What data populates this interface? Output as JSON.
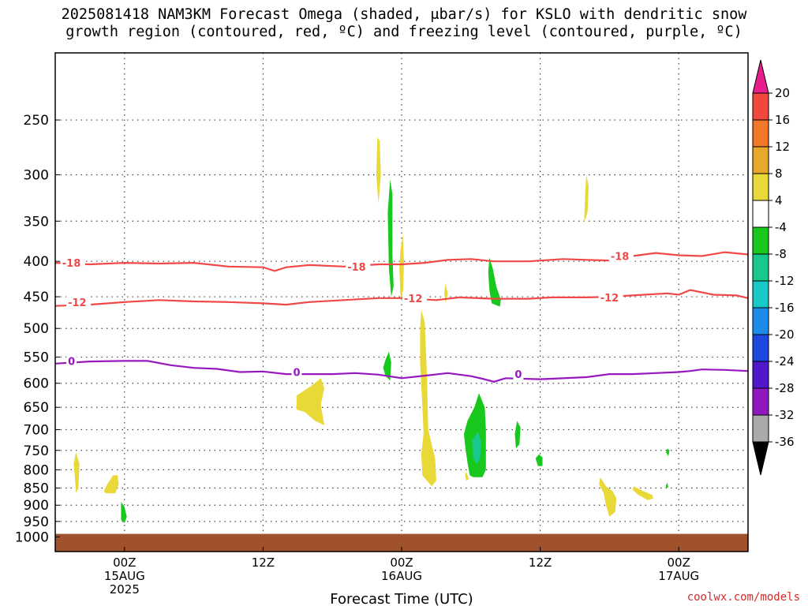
{
  "title": {
    "line1": "2025081418 NAM3KM Forecast Omega (shaded, μbar/s) for KSLO with dendritic snow",
    "line2": "growth region (contoured, red, ºC) and freezing level (contoured, purple, ºC)"
  },
  "xlabel": "Forecast Time (UTC)",
  "credit": "coolwx.com/models",
  "colorbar": {
    "labels": [
      "20",
      "16",
      "12",
      "8",
      "4",
      "-4",
      "-8",
      "-12",
      "-16",
      "-20",
      "-24",
      "-28",
      "-32",
      "-36"
    ],
    "colors": [
      "#e81e8c",
      "#f0483c",
      "#f07828",
      "#e8a82c",
      "#e8d838",
      "#ffffff",
      "#18c81c",
      "#18c88c",
      "#18c8c8",
      "#1c8ce8",
      "#1c48e0",
      "#5018c8",
      "#9018c0",
      "#aaaaaa",
      "#000000"
    ]
  },
  "chart_data": {
    "type": "heatmap",
    "x_unit": "forecast hours from 2025-08-14 18Z",
    "xlim": [
      0,
      60
    ],
    "ylim_hPa": [
      1050,
      200
    ],
    "y_ticks": [
      250,
      300,
      350,
      400,
      450,
      500,
      550,
      600,
      650,
      700,
      750,
      800,
      850,
      900,
      950,
      1000
    ],
    "x_ticks": [
      {
        "x": 6,
        "label": "00Z",
        "sub1": "15AUG",
        "sub2": "2025"
      },
      {
        "x": 18,
        "label": "12Z",
        "sub1": "",
        "sub2": ""
      },
      {
        "x": 30,
        "label": "00Z",
        "sub1": "16AUG",
        "sub2": ""
      },
      {
        "x": 42,
        "label": "12Z",
        "sub1": "",
        "sub2": ""
      },
      {
        "x": 54,
        "label": "00Z",
        "sub1": "17AUG",
        "sub2": ""
      }
    ],
    "contours": [
      {
        "level": "-18",
        "color": "#f04848",
        "points": [
          [
            0,
            402
          ],
          [
            3,
            404
          ],
          [
            6,
            402
          ],
          [
            9,
            403
          ],
          [
            12,
            402
          ],
          [
            15,
            407
          ],
          [
            18,
            408
          ],
          [
            19,
            413
          ],
          [
            20,
            408
          ],
          [
            22,
            405
          ],
          [
            25,
            407
          ],
          [
            28,
            404
          ],
          [
            30,
            404
          ],
          [
            32,
            402
          ],
          [
            34,
            398
          ],
          [
            36,
            397
          ],
          [
            38,
            400
          ],
          [
            41,
            400
          ],
          [
            44,
            397
          ],
          [
            46,
            398
          ],
          [
            48,
            399
          ],
          [
            49,
            397
          ],
          [
            50,
            393
          ],
          [
            52,
            389
          ],
          [
            54,
            392
          ],
          [
            56,
            393
          ],
          [
            58,
            388
          ],
          [
            60,
            391
          ]
        ],
        "labels": [
          [
            0.6,
            402
          ],
          [
            25.3,
            407
          ],
          [
            48.1,
            393
          ]
        ]
      },
      {
        "level": "-12",
        "color": "#f04848",
        "points": [
          [
            0,
            464
          ],
          [
            3,
            462
          ],
          [
            6,
            458
          ],
          [
            9,
            455
          ],
          [
            12,
            457
          ],
          [
            15,
            458
          ],
          [
            18,
            460
          ],
          [
            20,
            462
          ],
          [
            22,
            458
          ],
          [
            25,
            455
          ],
          [
            28,
            452
          ],
          [
            30,
            452
          ],
          [
            33,
            455
          ],
          [
            35,
            451
          ],
          [
            38,
            453
          ],
          [
            41,
            453
          ],
          [
            43,
            451
          ],
          [
            46,
            451
          ],
          [
            48,
            450
          ],
          [
            51,
            447
          ],
          [
            53,
            445
          ],
          [
            54,
            447
          ],
          [
            55,
            440
          ],
          [
            57,
            447
          ],
          [
            59,
            448
          ],
          [
            60,
            452
          ]
        ],
        "labels": [
          [
            1.1,
            458
          ],
          [
            30.2,
            452
          ],
          [
            47.2,
            451
          ]
        ]
      },
      {
        "level": "0",
        "color": "#9818c0",
        "points": [
          [
            0,
            562
          ],
          [
            3,
            558
          ],
          [
            6,
            557
          ],
          [
            8,
            557
          ],
          [
            10,
            565
          ],
          [
            12,
            570
          ],
          [
            14,
            572
          ],
          [
            16,
            578
          ],
          [
            18,
            577
          ],
          [
            20,
            582
          ],
          [
            24,
            582
          ],
          [
            26,
            580
          ],
          [
            28,
            583
          ],
          [
            30,
            590
          ],
          [
            32,
            585
          ],
          [
            34,
            580
          ],
          [
            36,
            586
          ],
          [
            37,
            591
          ],
          [
            38,
            597
          ],
          [
            39,
            590
          ],
          [
            42,
            592
          ],
          [
            46,
            588
          ],
          [
            48,
            582
          ],
          [
            50,
            582
          ],
          [
            52,
            580
          ],
          [
            54,
            578
          ],
          [
            55,
            576
          ],
          [
            56,
            573
          ],
          [
            58,
            574
          ],
          [
            60,
            576
          ]
        ],
        "labels": [
          [
            1.1,
            557
          ],
          [
            20.6,
            578
          ],
          [
            39.8,
            582
          ]
        ]
      }
    ],
    "shaded_regions": [
      {
        "category": "4 to 8",
        "color": "#e8d838",
        "points": [
          [
            27.9,
            265
          ],
          [
            28.1,
            268
          ],
          [
            28.2,
            300
          ],
          [
            28.0,
            330
          ],
          [
            27.8,
            300
          ]
        ]
      },
      {
        "category": "4 to 8",
        "color": "#e8d838",
        "points": [
          [
            29.9,
            385
          ],
          [
            30.1,
            365
          ],
          [
            30.2,
            400
          ],
          [
            30.1,
            460
          ],
          [
            29.9,
            450
          ],
          [
            29.8,
            410
          ]
        ]
      },
      {
        "category": "4 to 8",
        "color": "#e8d838",
        "points": [
          [
            31.7,
            470
          ],
          [
            32.0,
            490
          ],
          [
            32.2,
            590
          ],
          [
            32.3,
            700
          ],
          [
            32.9,
            770
          ],
          [
            33.0,
            830
          ],
          [
            32.6,
            845
          ],
          [
            31.8,
            815
          ],
          [
            31.7,
            760
          ],
          [
            31.9,
            710
          ],
          [
            31.8,
            650
          ],
          [
            31.6,
            560
          ],
          [
            31.6,
            500
          ]
        ]
      },
      {
        "category": "4 to 8",
        "color": "#e8d838",
        "points": [
          [
            20.9,
            625
          ],
          [
            22.2,
            605
          ],
          [
            23.0,
            590
          ],
          [
            23.3,
            610
          ],
          [
            23.0,
            645
          ],
          [
            23.3,
            690
          ],
          [
            22.5,
            680
          ],
          [
            21.6,
            660
          ],
          [
            20.9,
            655
          ]
        ]
      },
      {
        "category": "4 to 8",
        "color": "#e8d838",
        "points": [
          [
            33.8,
            430
          ],
          [
            34.0,
            445
          ],
          [
            33.8,
            460
          ],
          [
            33.7,
            445
          ]
        ]
      },
      {
        "category": "4 to 8",
        "color": "#e8d838",
        "points": [
          [
            35.6,
            805
          ],
          [
            35.8,
            825
          ],
          [
            35.6,
            830
          ],
          [
            35.5,
            815
          ]
        ]
      },
      {
        "category": "4 to 8",
        "color": "#e8d838",
        "points": [
          [
            46.0,
            300
          ],
          [
            46.2,
            312
          ],
          [
            46.1,
            340
          ],
          [
            45.8,
            352
          ],
          [
            45.9,
            318
          ]
        ]
      },
      {
        "category": "4 to 8",
        "color": "#e8d838",
        "points": [
          [
            1.8,
            755
          ],
          [
            2.1,
            785
          ],
          [
            2.0,
            850
          ],
          [
            1.8,
            865
          ],
          [
            1.7,
            820
          ],
          [
            1.6,
            785
          ]
        ]
      },
      {
        "category": "4 to 8",
        "color": "#e8d838",
        "points": [
          [
            4.2,
            860
          ],
          [
            4.5,
            840
          ],
          [
            5.0,
            815
          ],
          [
            5.4,
            815
          ],
          [
            5.5,
            840
          ],
          [
            5.2,
            865
          ],
          [
            4.4,
            865
          ]
        ]
      },
      {
        "category": "4 to 8",
        "color": "#e8d838",
        "points": [
          [
            47.2,
            820
          ],
          [
            47.7,
            845
          ],
          [
            48.3,
            860
          ],
          [
            48.6,
            880
          ],
          [
            48.5,
            920
          ],
          [
            48.0,
            935
          ],
          [
            47.7,
            900
          ],
          [
            47.5,
            865
          ],
          [
            47.1,
            840
          ]
        ]
      },
      {
        "category": "4 to 8",
        "color": "#e8d838",
        "points": [
          [
            50.1,
            845
          ],
          [
            51.0,
            860
          ],
          [
            51.7,
            870
          ],
          [
            51.8,
            880
          ],
          [
            51.3,
            885
          ],
          [
            50.5,
            870
          ],
          [
            50.0,
            855
          ]
        ]
      },
      {
        "category": "-4 to -8",
        "color": "#18c81c",
        "points": [
          [
            29.0,
            305
          ],
          [
            29.2,
            320
          ],
          [
            29.2,
            390
          ],
          [
            29.3,
            435
          ],
          [
            29.1,
            450
          ],
          [
            28.9,
            410
          ],
          [
            28.8,
            340
          ]
        ]
      },
      {
        "category": "-4 to -8",
        "color": "#18c81c",
        "points": [
          [
            28.9,
            540
          ],
          [
            29.1,
            560
          ],
          [
            29.0,
            595
          ],
          [
            28.6,
            585
          ],
          [
            28.4,
            570
          ],
          [
            28.6,
            555
          ]
        ]
      },
      {
        "category": "-4 to -8",
        "color": "#18c81c",
        "points": [
          [
            37.6,
            395
          ],
          [
            37.9,
            410
          ],
          [
            38.2,
            435
          ],
          [
            38.6,
            455
          ],
          [
            38.5,
            465
          ],
          [
            37.8,
            460
          ],
          [
            37.6,
            440
          ],
          [
            37.5,
            415
          ]
        ]
      },
      {
        "category": "-4 to -8",
        "color": "#18c81c",
        "points": [
          [
            35.7,
            680
          ],
          [
            36.3,
            650
          ],
          [
            36.7,
            620
          ],
          [
            37.2,
            650
          ],
          [
            37.3,
            700
          ],
          [
            37.3,
            750
          ],
          [
            37.3,
            800
          ],
          [
            37.0,
            820
          ],
          [
            36.2,
            820
          ],
          [
            35.9,
            815
          ],
          [
            35.7,
            780
          ],
          [
            35.5,
            740
          ],
          [
            35.4,
            710
          ]
        ]
      },
      {
        "category": "-4 to -8",
        "color": "#18c81c",
        "points": [
          [
            40.0,
            680
          ],
          [
            40.3,
            695
          ],
          [
            40.2,
            735
          ],
          [
            39.9,
            745
          ],
          [
            39.8,
            710
          ]
        ]
      },
      {
        "category": "-4 to -8",
        "color": "#18c81c",
        "points": [
          [
            41.9,
            760
          ],
          [
            42.2,
            768
          ],
          [
            42.2,
            790
          ],
          [
            41.8,
            790
          ],
          [
            41.6,
            770
          ]
        ]
      },
      {
        "category": "-4 to -8",
        "color": "#18c81c",
        "points": [
          [
            53.0,
            745
          ],
          [
            53.2,
            750
          ],
          [
            53.1,
            765
          ],
          [
            52.9,
            755
          ]
        ]
      },
      {
        "category": "-4 to -8",
        "color": "#18c81c",
        "points": [
          [
            53.0,
            835
          ],
          [
            53.1,
            848
          ],
          [
            52.9,
            850
          ],
          [
            52.9,
            842
          ]
        ]
      },
      {
        "category": "-4 to -8",
        "color": "#18c81c",
        "points": [
          [
            5.7,
            890
          ],
          [
            6.0,
            905
          ],
          [
            6.2,
            935
          ],
          [
            6.0,
            955
          ],
          [
            5.7,
            945
          ],
          [
            5.7,
            915
          ]
        ]
      },
      {
        "category": "-8 to -12",
        "color": "#18c88c",
        "points": [
          [
            36.1,
            725
          ],
          [
            36.6,
            705
          ],
          [
            36.9,
            730
          ],
          [
            36.8,
            770
          ],
          [
            36.5,
            785
          ],
          [
            36.2,
            770
          ]
        ]
      }
    ],
    "surface": {
      "color": "#a0522d",
      "points": [
        [
          0,
          990
        ],
        [
          60,
          990
        ]
      ]
    }
  }
}
